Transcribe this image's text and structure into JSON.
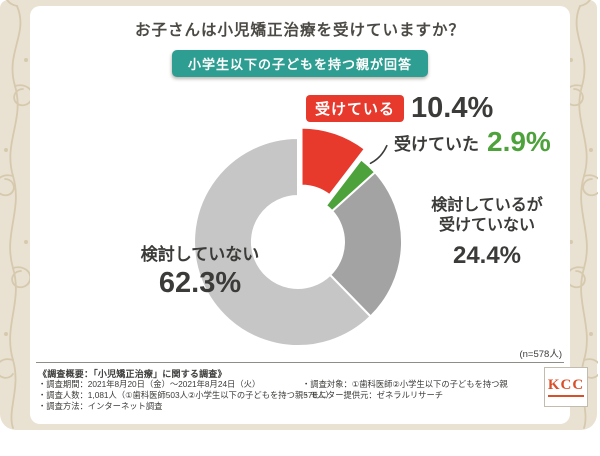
{
  "theme": {
    "background": "#e9e1d2",
    "panel": "#ffffff",
    "badge_teal": "#2f9e92",
    "text_dark": "#3b3b39",
    "ornament": "#d6c9ad"
  },
  "header": {
    "title": "お子さんは小児矯正治療を受けていますか？",
    "badge": "小学生以下の子どもを持つ親が回答"
  },
  "chart_data": {
    "type": "pie",
    "style": "donut",
    "title": "お子さんは小児矯正治療を受けていますか？",
    "n_label": "(n=578人)",
    "unit": "%",
    "legend_position": "around",
    "slices": [
      {
        "label": "受けている",
        "value": 10.4,
        "display": "10.4%",
        "color": "#e8392d",
        "exploded": true
      },
      {
        "label": "受けていた",
        "value": 2.9,
        "display": "2.9%",
        "color": "#4ea23b",
        "exploded": false
      },
      {
        "label": "検討しているが受けていない",
        "value": 24.4,
        "display": "24.4%",
        "color": "#a3a3a3",
        "exploded": false
      },
      {
        "label": "検討していない",
        "value": 62.3,
        "display": "62.3%",
        "color": "#c6c6c6",
        "exploded": false
      }
    ]
  },
  "footer": {
    "heading": "《調査概要：「小児矯正治療」に関する調査》",
    "left_items": [
      "・調査期間：2021年8月20日（金）〜2021年8月24日（火）",
      "・調査人数：1,081人（①歯科医師503人②小学生以下の子どもを持つ親578人）",
      "・調査方法：インターネット調査"
    ],
    "right_items": [
      "・調査対象：①歯科医師②小学生以下の子どもを持つ親",
      "・モニター提供元：ゼネラルリサーチ"
    ],
    "logo_text": "KCC"
  }
}
